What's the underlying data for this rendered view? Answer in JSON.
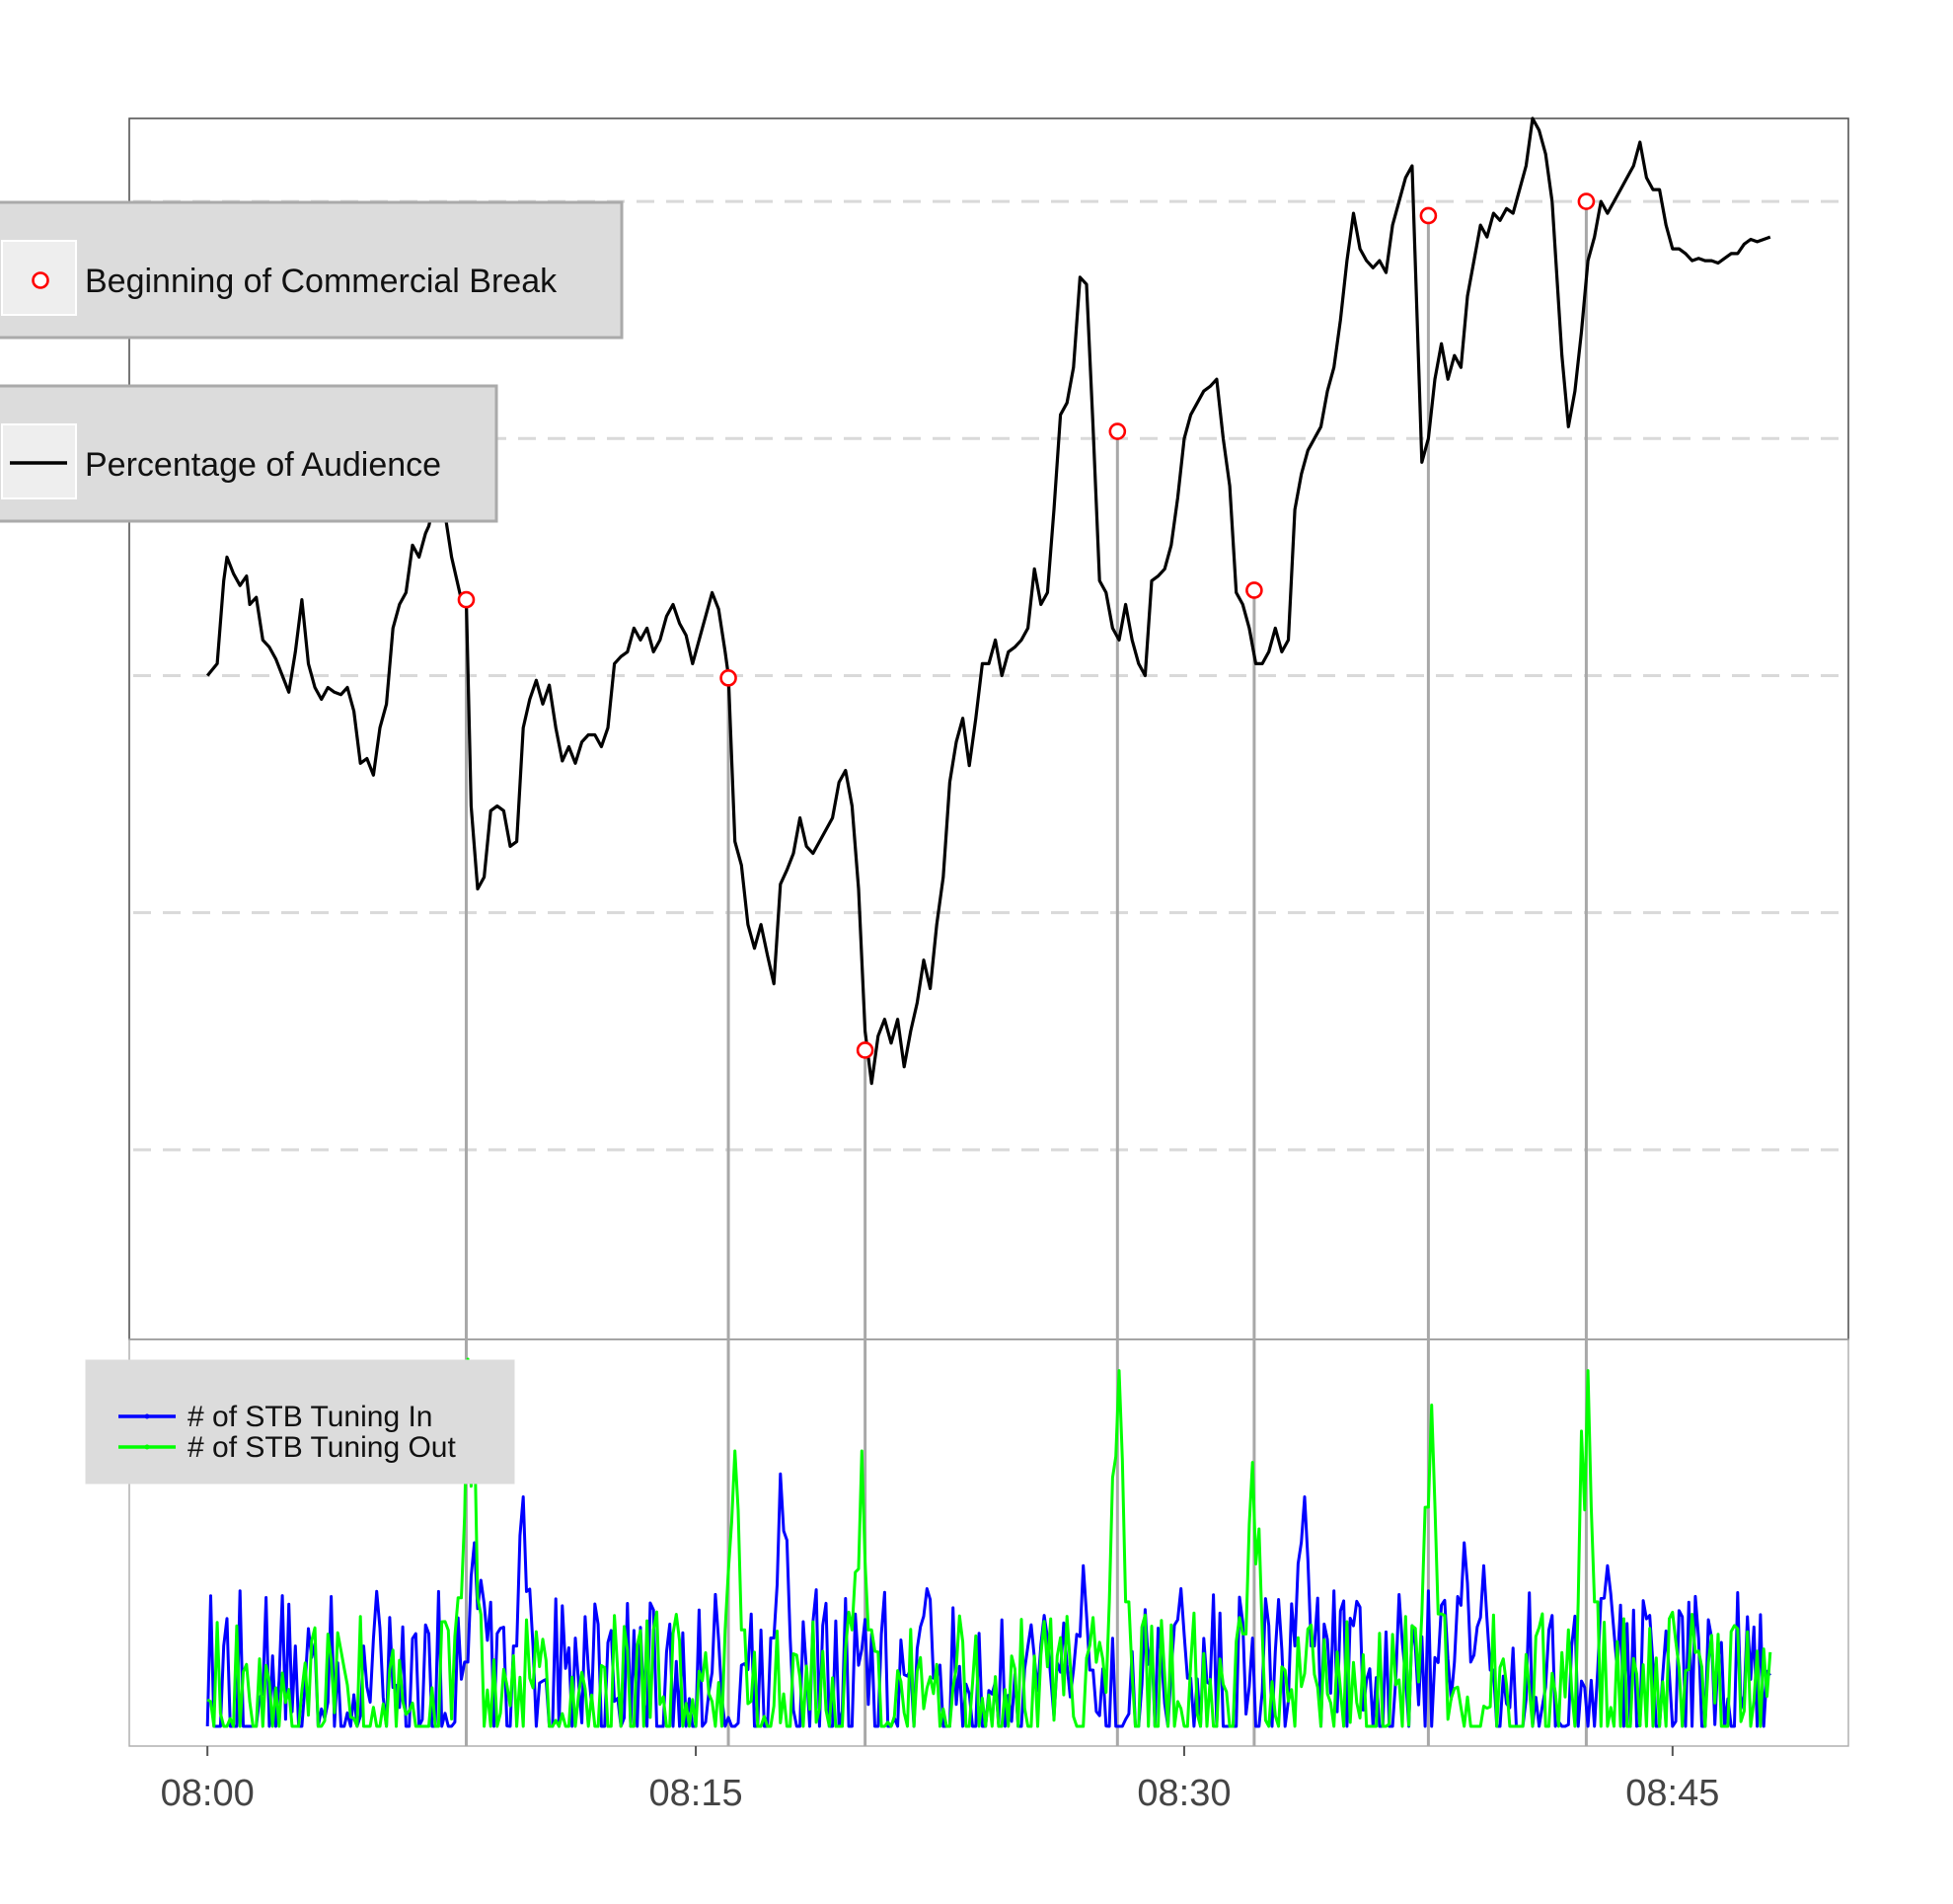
{
  "chart_data": {
    "type": "line",
    "x_axis": {
      "ticks": [
        "08:00",
        "08:15",
        "08:30",
        "08:45"
      ],
      "range_minutes": [
        -2.4,
        50.4
      ],
      "tick_minutes": [
        0,
        15,
        30,
        45
      ]
    },
    "upper_panel": {
      "grid": "horizontal dashed",
      "grid_levels": [
        1,
        2,
        3,
        4,
        5
      ],
      "ylim": [
        0.2,
        5.35
      ],
      "series": [
        {
          "legend_label": "Percentage of Audience",
          "color": "#000000",
          "points": [
            [
              0,
              3.0
            ],
            [
              0.3,
              3.05
            ],
            [
              0.5,
              3.4
            ],
            [
              0.6,
              3.5
            ],
            [
              0.8,
              3.43
            ],
            [
              1.0,
              3.38
            ],
            [
              1.2,
              3.42
            ],
            [
              1.3,
              3.3
            ],
            [
              1.5,
              3.33
            ],
            [
              1.7,
              3.15
            ],
            [
              1.9,
              3.12
            ],
            [
              2.1,
              3.07
            ],
            [
              2.3,
              3.0
            ],
            [
              2.5,
              2.93
            ],
            [
              2.7,
              3.1
            ],
            [
              2.9,
              3.32
            ],
            [
              3.1,
              3.05
            ],
            [
              3.3,
              2.95
            ],
            [
              3.5,
              2.9
            ],
            [
              3.7,
              2.95
            ],
            [
              3.9,
              2.93
            ],
            [
              4.1,
              2.92
            ],
            [
              4.3,
              2.95
            ],
            [
              4.5,
              2.85
            ],
            [
              4.7,
              2.63
            ],
            [
              4.9,
              2.65
            ],
            [
              5.1,
              2.58
            ],
            [
              5.3,
              2.78
            ],
            [
              5.5,
              2.88
            ],
            [
              5.7,
              3.2
            ],
            [
              5.9,
              3.3
            ],
            [
              6.1,
              3.35
            ],
            [
              6.3,
              3.55
            ],
            [
              6.5,
              3.5
            ],
            [
              6.7,
              3.6
            ],
            [
              6.8,
              3.63
            ],
            [
              7.0,
              3.75
            ],
            [
              7.2,
              3.8
            ],
            [
              7.3,
              3.68
            ],
            [
              7.5,
              3.5
            ],
            [
              7.8,
              3.32
            ],
            [
              7.95,
              3.32
            ],
            [
              8.1,
              2.45
            ],
            [
              8.3,
              2.1
            ],
            [
              8.5,
              2.15
            ],
            [
              8.7,
              2.43
            ],
            [
              8.9,
              2.45
            ],
            [
              9.1,
              2.43
            ],
            [
              9.3,
              2.28
            ],
            [
              9.5,
              2.3
            ],
            [
              9.7,
              2.78
            ],
            [
              9.9,
              2.9
            ],
            [
              10.1,
              2.98
            ],
            [
              10.3,
              2.88
            ],
            [
              10.5,
              2.96
            ],
            [
              10.7,
              2.78
            ],
            [
              10.9,
              2.64
            ],
            [
              11.1,
              2.7
            ],
            [
              11.3,
              2.63
            ],
            [
              11.5,
              2.72
            ],
            [
              11.7,
              2.75
            ],
            [
              11.9,
              2.75
            ],
            [
              12.1,
              2.7
            ],
            [
              12.3,
              2.78
            ],
            [
              12.5,
              3.05
            ],
            [
              12.7,
              3.08
            ],
            [
              12.9,
              3.1
            ],
            [
              13.1,
              3.2
            ],
            [
              13.3,
              3.15
            ],
            [
              13.5,
              3.2
            ],
            [
              13.7,
              3.1
            ],
            [
              13.9,
              3.15
            ],
            [
              14.1,
              3.25
            ],
            [
              14.3,
              3.3
            ],
            [
              14.5,
              3.22
            ],
            [
              14.7,
              3.17
            ],
            [
              14.9,
              3.05
            ],
            [
              15.1,
              3.15
            ],
            [
              15.3,
              3.25
            ],
            [
              15.5,
              3.35
            ],
            [
              15.7,
              3.28
            ],
            [
              15.9,
              3.1
            ],
            [
              16.0,
              3.0
            ],
            [
              16.2,
              2.3
            ],
            [
              16.4,
              2.2
            ],
            [
              16.6,
              1.95
            ],
            [
              16.8,
              1.85
            ],
            [
              17.0,
              1.95
            ],
            [
              17.2,
              1.82
            ],
            [
              17.4,
              1.7
            ],
            [
              17.6,
              2.12
            ],
            [
              17.8,
              2.18
            ],
            [
              18.0,
              2.25
            ],
            [
              18.2,
              2.4
            ],
            [
              18.4,
              2.28
            ],
            [
              18.6,
              2.25
            ],
            [
              18.8,
              2.3
            ],
            [
              19.0,
              2.35
            ],
            [
              19.2,
              2.4
            ],
            [
              19.4,
              2.55
            ],
            [
              19.6,
              2.6
            ],
            [
              19.8,
              2.45
            ],
            [
              20.0,
              2.1
            ],
            [
              20.2,
              1.5
            ],
            [
              20.4,
              1.28
            ],
            [
              20.6,
              1.48
            ],
            [
              20.8,
              1.55
            ],
            [
              21.0,
              1.45
            ],
            [
              21.2,
              1.55
            ],
            [
              21.4,
              1.35
            ],
            [
              21.6,
              1.5
            ],
            [
              21.8,
              1.62
            ],
            [
              22.0,
              1.8
            ],
            [
              22.2,
              1.68
            ],
            [
              22.4,
              1.95
            ],
            [
              22.6,
              2.15
            ],
            [
              22.8,
              2.55
            ],
            [
              23.0,
              2.72
            ],
            [
              23.2,
              2.82
            ],
            [
              23.4,
              2.62
            ],
            [
              23.6,
              2.82
            ],
            [
              23.8,
              3.05
            ],
            [
              24.0,
              3.05
            ],
            [
              24.2,
              3.15
            ],
            [
              24.4,
              3.0
            ],
            [
              24.6,
              3.1
            ],
            [
              24.8,
              3.12
            ],
            [
              25.0,
              3.15
            ],
            [
              25.2,
              3.2
            ],
            [
              25.4,
              3.45
            ],
            [
              25.6,
              3.3
            ],
            [
              25.8,
              3.35
            ],
            [
              26.0,
              3.7
            ],
            [
              26.2,
              4.1
            ],
            [
              26.4,
              4.15
            ],
            [
              26.6,
              4.3
            ],
            [
              26.8,
              4.68
            ],
            [
              27.0,
              4.65
            ],
            [
              27.2,
              4.05
            ],
            [
              27.4,
              3.4
            ],
            [
              27.6,
              3.35
            ],
            [
              27.8,
              3.2
            ],
            [
              28.0,
              3.15
            ],
            [
              28.2,
              3.3
            ],
            [
              28.4,
              3.15
            ],
            [
              28.6,
              3.05
            ],
            [
              28.8,
              3.0
            ],
            [
              29.0,
              3.4
            ],
            [
              29.2,
              3.42
            ],
            [
              29.4,
              3.45
            ],
            [
              29.6,
              3.55
            ],
            [
              29.8,
              3.75
            ],
            [
              30.0,
              4.0
            ],
            [
              30.2,
              4.1
            ],
            [
              30.4,
              4.15
            ],
            [
              30.6,
              4.2
            ],
            [
              30.8,
              4.22
            ],
            [
              31.0,
              4.25
            ],
            [
              31.2,
              4.0
            ],
            [
              31.4,
              3.8
            ],
            [
              31.6,
              3.35
            ],
            [
              31.8,
              3.3
            ],
            [
              32.0,
              3.2
            ],
            [
              32.2,
              3.05
            ],
            [
              32.4,
              3.05
            ],
            [
              32.6,
              3.1
            ],
            [
              32.8,
              3.2
            ],
            [
              33.0,
              3.1
            ],
            [
              33.2,
              3.15
            ],
            [
              33.4,
              3.7
            ],
            [
              33.6,
              3.85
            ],
            [
              33.8,
              3.95
            ],
            [
              34.0,
              4.0
            ],
            [
              34.2,
              4.05
            ],
            [
              34.4,
              4.2
            ],
            [
              34.6,
              4.3
            ],
            [
              34.8,
              4.5
            ],
            [
              35.0,
              4.75
            ],
            [
              35.2,
              4.95
            ],
            [
              35.4,
              4.8
            ],
            [
              35.6,
              4.75
            ],
            [
              35.8,
              4.72
            ],
            [
              36.0,
              4.75
            ],
            [
              36.2,
              4.7
            ],
            [
              36.4,
              4.9
            ],
            [
              36.6,
              5.0
            ],
            [
              36.8,
              5.1
            ],
            [
              37.0,
              5.15
            ],
            [
              37.3,
              3.9
            ],
            [
              37.5,
              4.0
            ],
            [
              37.7,
              4.25
            ],
            [
              37.9,
              4.4
            ],
            [
              38.1,
              4.25
            ],
            [
              38.3,
              4.35
            ],
            [
              38.5,
              4.3
            ],
            [
              38.7,
              4.6
            ],
            [
              38.9,
              4.75
            ],
            [
              39.1,
              4.9
            ],
            [
              39.3,
              4.85
            ],
            [
              39.5,
              4.95
            ],
            [
              39.7,
              4.92
            ],
            [
              39.9,
              4.97
            ],
            [
              40.1,
              4.95
            ],
            [
              40.3,
              5.05
            ],
            [
              40.5,
              5.15
            ],
            [
              40.7,
              5.35
            ],
            [
              40.9,
              5.3
            ],
            [
              41.1,
              5.2
            ],
            [
              41.3,
              5.0
            ],
            [
              41.6,
              4.35
            ],
            [
              41.8,
              4.05
            ],
            [
              42.0,
              4.2
            ],
            [
              42.2,
              4.45
            ],
            [
              42.4,
              4.75
            ],
            [
              42.6,
              4.85
            ],
            [
              42.8,
              5.0
            ],
            [
              43.0,
              4.95
            ],
            [
              43.2,
              5.0
            ],
            [
              43.4,
              5.05
            ],
            [
              43.6,
              5.1
            ],
            [
              43.8,
              5.15
            ],
            [
              44.0,
              5.25
            ],
            [
              44.2,
              5.1
            ],
            [
              44.4,
              5.05
            ],
            [
              44.6,
              5.05
            ],
            [
              44.8,
              4.9
            ],
            [
              45.0,
              4.8
            ],
            [
              45.2,
              4.8
            ],
            [
              45.4,
              4.78
            ],
            [
              45.6,
              4.75
            ],
            [
              45.8,
              4.76
            ],
            [
              46.0,
              4.75
            ],
            [
              46.2,
              4.75
            ],
            [
              46.4,
              4.74
            ],
            [
              46.6,
              4.76
            ],
            [
              46.8,
              4.78
            ],
            [
              47.0,
              4.78
            ],
            [
              47.2,
              4.82
            ],
            [
              47.4,
              4.84
            ],
            [
              47.6,
              4.83
            ],
            [
              47.8,
              4.84
            ],
            [
              48.0,
              4.85
            ]
          ]
        },
        {
          "legend_label": "Beginning of Commercial Break",
          "color": "#ff0000",
          "marker": "open-circle",
          "points": [
            [
              7.95,
              3.32
            ],
            [
              16.0,
              2.99
            ],
            [
              20.2,
              1.42
            ],
            [
              27.95,
              4.03
            ],
            [
              32.15,
              3.36
            ],
            [
              37.5,
              4.94
            ],
            [
              42.35,
              5.0
            ]
          ]
        }
      ]
    },
    "lower_panel": {
      "ylim": [
        0,
        16
      ],
      "series": [
        {
          "legend_label": "# of STB Tuning In",
          "color": "#0000ff",
          "spikes": [
            [
              8.2,
              8
            ],
            [
              9.7,
              10
            ],
            [
              17.6,
              11
            ],
            [
              22.1,
              6
            ],
            [
              26.9,
              7
            ],
            [
              29.9,
              6
            ],
            [
              33.7,
              10
            ],
            [
              38.6,
              8
            ],
            [
              39.2,
              7
            ],
            [
              43.0,
              7
            ]
          ]
        },
        {
          "legend_label": "# of STB Tuning Out",
          "color": "#00ff00",
          "spikes": [
            [
              8.0,
              16
            ],
            [
              16.15,
              12
            ],
            [
              20.1,
              12
            ],
            [
              28.0,
              15.5
            ],
            [
              32.15,
              11.5
            ],
            [
              37.6,
              14
            ],
            [
              42.4,
              15.5
            ]
          ]
        }
      ]
    },
    "reference_lines_minutes": [
      7.95,
      16.0,
      20.2,
      27.95,
      32.15,
      37.5,
      42.35
    ]
  }
}
